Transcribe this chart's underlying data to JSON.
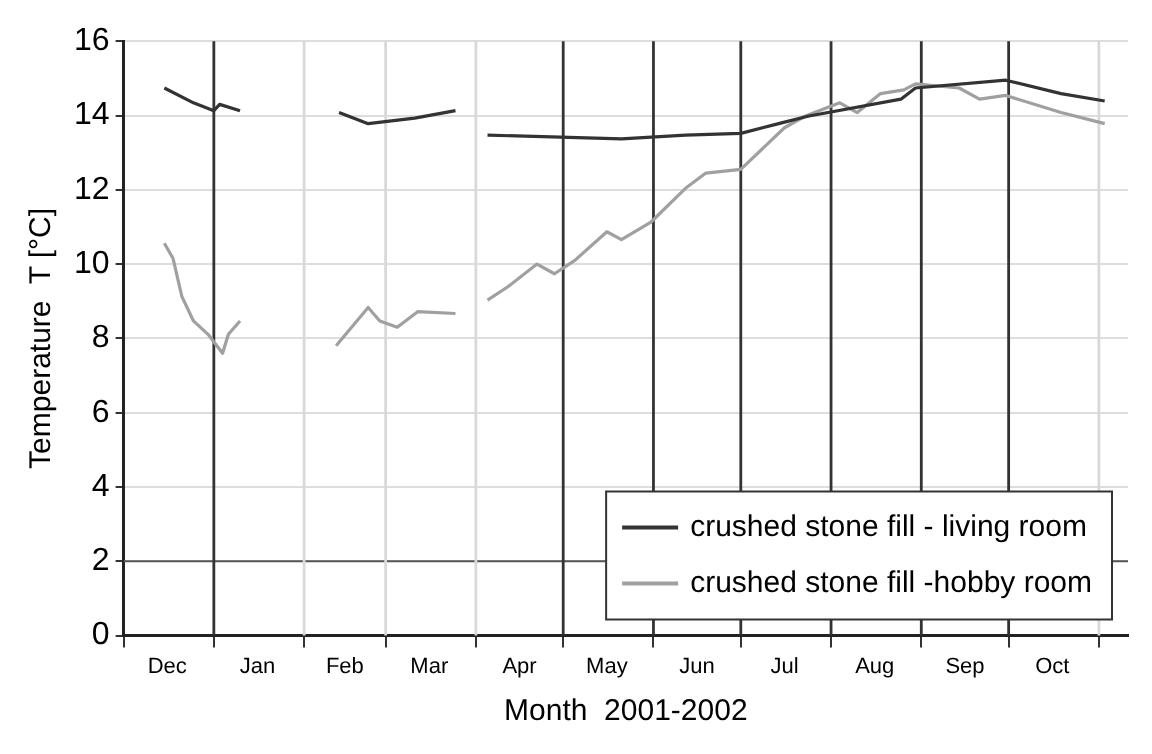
{
  "chart_data": {
    "type": "line",
    "xlabel": "Month  2001-2002",
    "ylabel": "Temperature  T [°C]",
    "xlim": [
      "2001-12-01",
      "2002-11-11"
    ],
    "ylim": [
      0,
      16
    ],
    "yticks": [
      0,
      2,
      4,
      6,
      8,
      10,
      12,
      14,
      16
    ],
    "xticks": [
      {
        "value": "2001-12-01",
        "label": null
      },
      {
        "value": "2001-12-16",
        "label": "Dec"
      },
      {
        "value": "2002-01-01",
        "label": null
      },
      {
        "value": "2002-01-16",
        "label": "Jan"
      },
      {
        "value": "2002-02-01",
        "label": null
      },
      {
        "value": "2002-02-15",
        "label": "Feb"
      },
      {
        "value": "2002-03-01",
        "label": null
      },
      {
        "value": "2002-03-16",
        "label": "Mar"
      },
      {
        "value": "2002-04-01",
        "label": null
      },
      {
        "value": "2002-04-16",
        "label": "Apr"
      },
      {
        "value": "2002-05-01",
        "label": null
      },
      {
        "value": "2002-05-16",
        "label": "May"
      },
      {
        "value": "2002-06-01",
        "label": null
      },
      {
        "value": "2002-06-16",
        "label": "Jun"
      },
      {
        "value": "2002-07-01",
        "label": null
      },
      {
        "value": "2002-07-16",
        "label": "Jul"
      },
      {
        "value": "2002-08-01",
        "label": null
      },
      {
        "value": "2002-08-16",
        "label": "Aug"
      },
      {
        "value": "2002-09-01",
        "label": null
      },
      {
        "value": "2002-09-16",
        "label": "Sep"
      },
      {
        "value": "2002-10-01",
        "label": null
      },
      {
        "value": "2002-10-16",
        "label": "Oct"
      },
      {
        "value": "2002-11-01",
        "label": null
      }
    ],
    "grid": "y",
    "legend": "bottom right",
    "marker": "none",
    "line_style": "solid",
    "series": [
      {
        "name": "crushed stone fill - living room",
        "color": "#333333",
        "x": [
          "2001-12-15",
          "2001-12-25",
          "2002-01-01",
          "2002-01-03",
          "2002-01-10",
          "2002-01-26",
          "2002-02-13",
          "2002-02-23",
          "2002-03-11",
          "2002-03-25",
          "2002-04-01",
          "2002-04-05",
          "2002-04-30",
          "2002-05-21",
          "2002-06-12",
          "2002-07-01",
          "2002-07-14",
          "2002-07-24",
          "2002-08-25",
          "2002-08-30",
          "2002-09-30",
          "2002-10-19",
          "2002-11-03"
        ],
        "values": [
          14.74,
          14.34,
          14.13,
          14.3,
          14.13,
          null,
          14.08,
          13.78,
          13.93,
          14.13,
          null,
          13.47,
          13.42,
          13.37,
          13.47,
          13.52,
          13.78,
          13.98,
          14.44,
          14.74,
          14.95,
          14.59,
          14.39
        ]
      },
      {
        "name": "crushed stone fill -hobby room",
        "color": "#a0a0a0",
        "x": [
          "2001-12-15",
          "2001-12-18",
          "2001-12-21",
          "2001-12-25",
          "2001-12-30",
          "2002-01-04",
          "2002-01-06",
          "2002-01-10",
          "2002-01-26",
          "2002-02-12",
          "2002-02-23",
          "2002-02-27",
          "2002-03-05",
          "2002-03-12",
          "2002-03-25",
          "2002-04-01",
          "2002-04-05",
          "2002-04-12",
          "2002-04-22",
          "2002-04-28",
          "2002-05-05",
          "2002-05-16",
          "2002-05-21",
          "2002-05-31",
          "2002-06-12",
          "2002-06-19",
          "2002-07-01",
          "2002-07-16",
          "2002-07-23",
          "2002-08-04",
          "2002-08-10",
          "2002-08-18",
          "2002-08-26",
          "2002-08-30",
          "2002-09-14",
          "2002-09-21",
          "2002-09-30",
          "2002-10-19",
          "2002-11-03"
        ],
        "values": [
          10.56,
          10.15,
          9.13,
          8.47,
          8.11,
          7.6,
          8.11,
          8.47,
          null,
          7.8,
          8.83,
          8.47,
          8.3,
          8.72,
          8.67,
          null,
          9.03,
          9.39,
          10.0,
          9.74,
          10.1,
          10.87,
          10.66,
          11.12,
          12.04,
          12.45,
          12.55,
          13.67,
          13.98,
          14.34,
          14.08,
          14.59,
          14.69,
          14.85,
          14.74,
          14.44,
          14.54,
          14.08,
          13.78
        ]
      }
    ],
    "ref_lines": [
      {
        "axis": "y",
        "value": 2,
        "color": "#555555"
      },
      {
        "axis": "x",
        "value": "2002-01-01",
        "color": "#333333"
      },
      {
        "axis": "x",
        "value": "2002-02-01",
        "color": "#d9d9d9"
      },
      {
        "axis": "x",
        "value": "2002-03-01",
        "color": "#d9d9d9"
      },
      {
        "axis": "x",
        "value": "2002-04-01",
        "color": "#d9d9d9"
      },
      {
        "axis": "x",
        "value": "2002-05-01",
        "color": "#333333"
      },
      {
        "axis": "x",
        "value": "2002-06-01",
        "color": "#333333"
      },
      {
        "axis": "x",
        "value": "2002-07-01",
        "color": "#333333"
      },
      {
        "axis": "x",
        "value": "2002-08-01",
        "color": "#333333"
      },
      {
        "axis": "x",
        "value": "2002-09-01",
        "color": "#333333"
      },
      {
        "axis": "x",
        "value": "2002-10-01",
        "color": "#333333"
      },
      {
        "axis": "x",
        "value": "2002-11-01",
        "color": "#d9d9d9"
      }
    ]
  }
}
